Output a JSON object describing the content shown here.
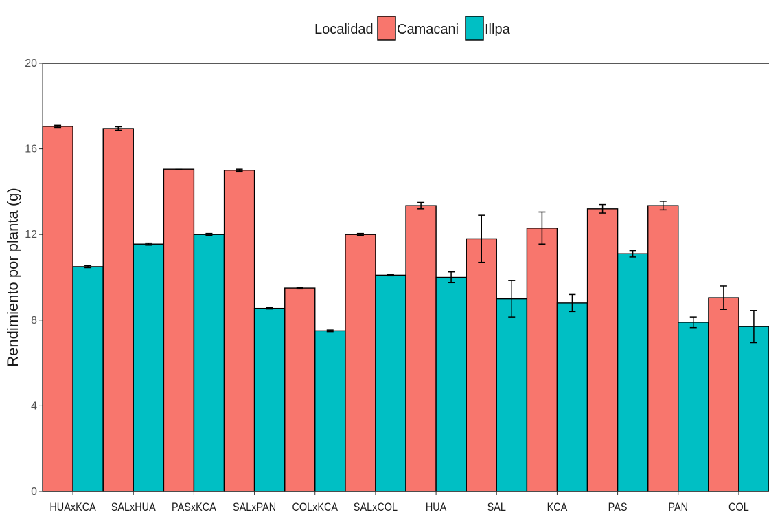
{
  "chart_data": {
    "type": "bar",
    "xlabel": "",
    "ylabel": "Rendimiento por planta (g)",
    "ylim": [
      0,
      20
    ],
    "yticks": [
      0,
      4,
      8,
      12,
      16,
      20
    ],
    "grid": false,
    "legend_position": "top",
    "legend_title": "Localidad",
    "categories": [
      "HUAxKCA",
      "SALxHUA",
      "PASxKCA",
      "SALxPAN",
      "COLxKCA",
      "SALxCOL",
      "HUA",
      "SAL",
      "KCA",
      "PAS",
      "PAN",
      "COL"
    ],
    "series": [
      {
        "name": "Camacani",
        "color": "#f8766d",
        "values": [
          17.05,
          16.95,
          15.05,
          15.0,
          9.5,
          12.0,
          13.35,
          11.8,
          12.3,
          13.2,
          13.35,
          9.05
        ],
        "errors": [
          0.05,
          0.08,
          0.0,
          0.05,
          0.04,
          0.05,
          0.15,
          1.1,
          0.75,
          0.2,
          0.2,
          0.55
        ]
      },
      {
        "name": "Illpa",
        "color": "#00bfc4",
        "values": [
          10.5,
          11.55,
          12.0,
          8.55,
          7.5,
          10.1,
          10.0,
          9.0,
          8.8,
          11.1,
          7.9,
          7.7
        ],
        "errors": [
          0.05,
          0.05,
          0.05,
          0.03,
          0.04,
          0.03,
          0.25,
          0.85,
          0.4,
          0.15,
          0.25,
          0.75
        ]
      }
    ],
    "reference_line": 20
  }
}
